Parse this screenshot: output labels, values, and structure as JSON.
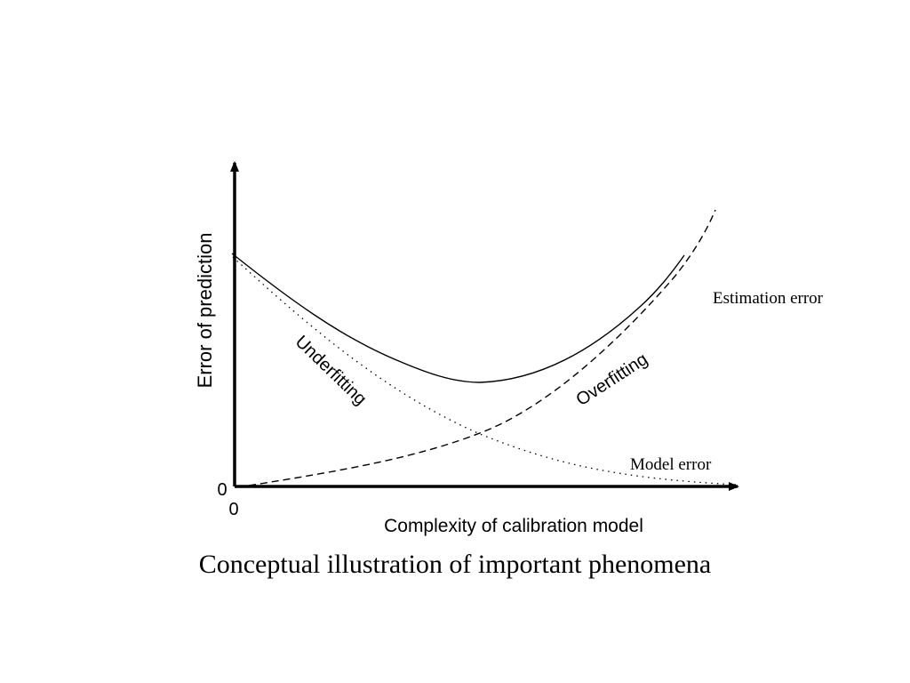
{
  "diagram": {
    "y_axis_label": "Error of prediction",
    "x_axis_label": "Complexity of calibration model",
    "origin_y_label": "0",
    "origin_x_label": "0",
    "curves": {
      "total_error": "Estimation error",
      "bias": "Model error",
      "underfitting": "Underfitting",
      "overfitting": "Overfitting"
    }
  },
  "caption": "Conceptual illustration of important phenomena",
  "colors": {
    "ink": "#000000",
    "background": "#ffffff"
  }
}
